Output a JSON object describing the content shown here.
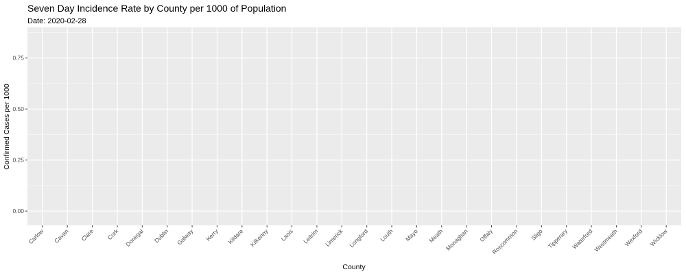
{
  "chart_data": {
    "type": "bar",
    "title": "Seven Day Incidence Rate by County per 1000 of Population",
    "subtitle": "Date: 2020-02-28",
    "xlabel": "County",
    "ylabel": "Confirmed Cases per 1000",
    "categories": [
      "Carlow",
      "Cavan",
      "Clare",
      "Cork",
      "Donegal",
      "Dublin",
      "Galway",
      "Kerry",
      "Kildare",
      "Kilkenny",
      "Laois",
      "Leitrim",
      "Limerick",
      "Longford",
      "Louth",
      "Mayo",
      "Meath",
      "Monaghan",
      "Offaly",
      "Roscommon",
      "Sligo",
      "Tipperary",
      "Waterford",
      "Westmeath",
      "Wexford",
      "Wicklow"
    ],
    "values": [
      0,
      0,
      0,
      0,
      0,
      0,
      0,
      0,
      0,
      0,
      0,
      0,
      0,
      0,
      0,
      0,
      0,
      0,
      0,
      0,
      0,
      0,
      0,
      0,
      0,
      0
    ],
    "ylim": [
      -0.07,
      0.9
    ],
    "yticks": [
      0,
      0.25,
      0.5,
      0.75
    ],
    "ytick_labels": [
      "0.00",
      "0.25",
      "0.50",
      "0.75"
    ],
    "grid": true,
    "colors": {
      "panel": "#ebebeb",
      "grid_major": "#ffffff",
      "bar": "#595959"
    }
  }
}
